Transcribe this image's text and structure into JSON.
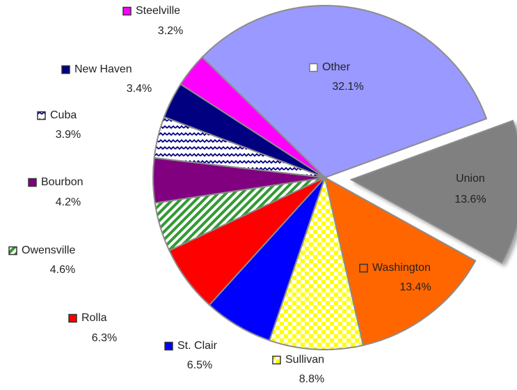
{
  "chart_data": {
    "type": "pie",
    "categories": [
      "Other",
      "Union",
      "Washington",
      "Sullivan",
      "St. Clair",
      "Rolla",
      "Owensville",
      "Bourbon",
      "Cuba",
      "New Haven",
      "Steelville"
    ],
    "values": [
      32.1,
      13.6,
      13.4,
      8.8,
      6.5,
      6.3,
      4.6,
      4.2,
      3.9,
      3.4,
      3.2
    ],
    "value_labels": [
      "32.1%",
      "13.6%",
      "13.4%",
      "8.8%",
      "6.5%",
      "6.3%",
      "4.6%",
      "4.2%",
      "3.9%",
      "3.4%",
      "3.2%"
    ],
    "colors": [
      "#9999ff",
      "#808080",
      "#ff6600",
      "#ffff00",
      "#0000ff",
      "#ff0000",
      "#339933",
      "#800080",
      "#000080",
      "#000080",
      "#ff00ff"
    ],
    "patterns": [
      null,
      null,
      null,
      "checker",
      null,
      null,
      "diagonal",
      null,
      "wave",
      null,
      null
    ],
    "exploded": "Union"
  }
}
